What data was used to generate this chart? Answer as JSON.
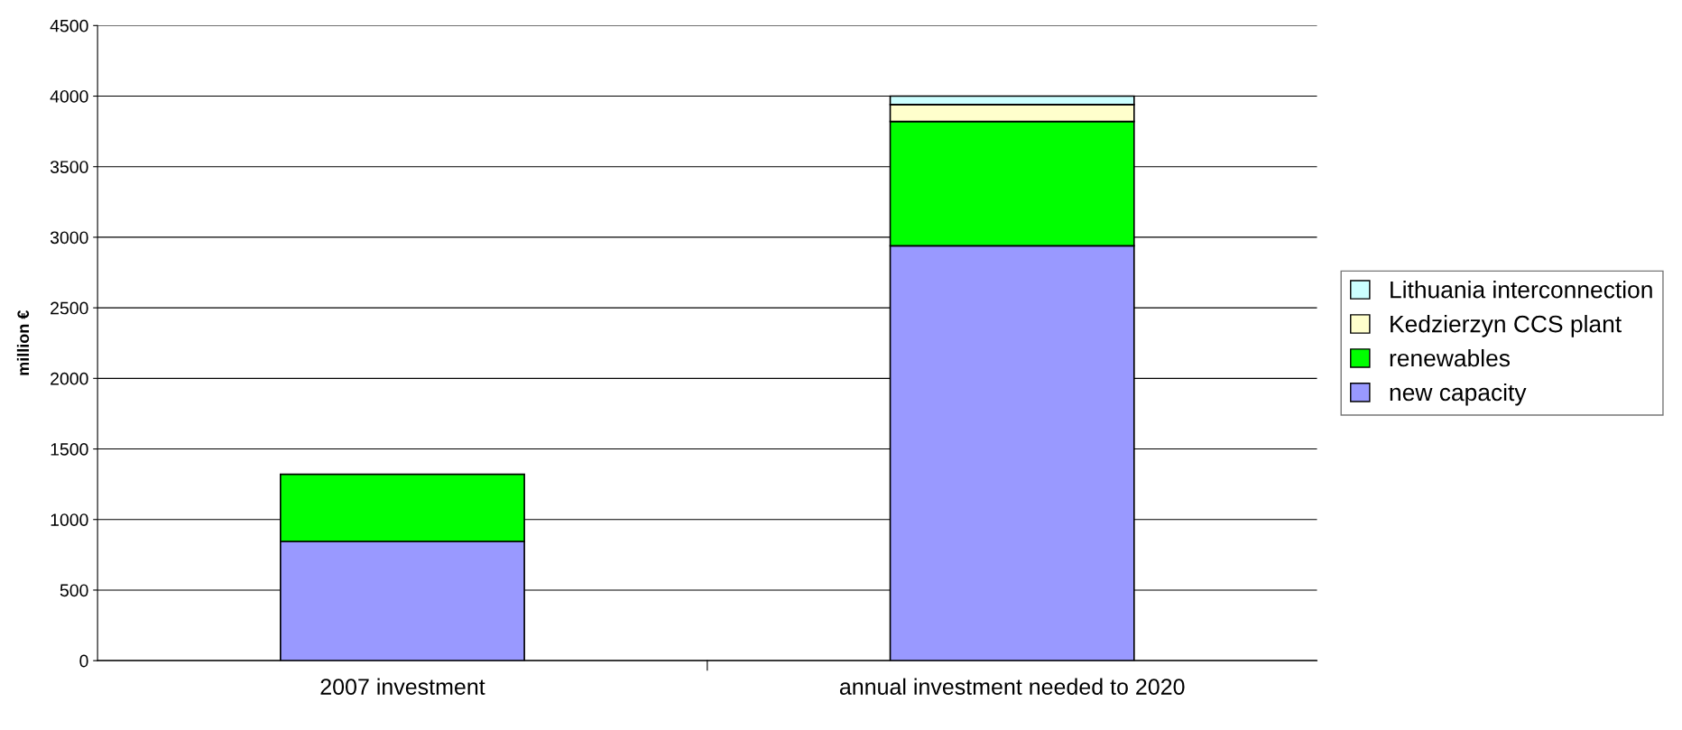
{
  "chart_data": {
    "type": "bar",
    "stacked": true,
    "ylabel": "million €",
    "categories": [
      "2007 investment",
      "annual investment needed to 2020"
    ],
    "series": [
      {
        "name": "new capacity",
        "color": "#9999ff",
        "values": [
          845,
          2940
        ]
      },
      {
        "name": "renewables",
        "color": "#00ff00",
        "values": [
          475,
          880
        ]
      },
      {
        "name": "Kedzierzyn CCS plant",
        "color": "#ffffcc",
        "values": [
          null,
          120
        ]
      },
      {
        "name": "Lithuania interconnection",
        "color": "#ccffff",
        "values": [
          null,
          60
        ]
      }
    ],
    "ylim": [
      0,
      4500
    ],
    "yticks": [
      0,
      500,
      1000,
      1500,
      2000,
      2500,
      3000,
      3500,
      4000,
      4500
    ],
    "grid": "y",
    "legend": "right"
  }
}
